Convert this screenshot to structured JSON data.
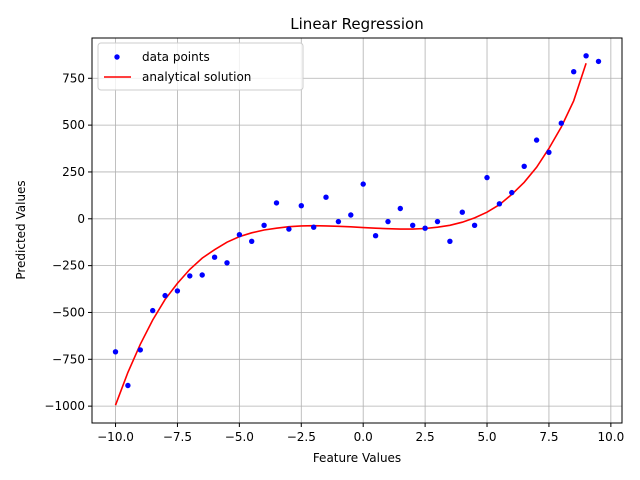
{
  "chart_data": {
    "type": "scatter",
    "title": "Linear Regression",
    "xlabel": "Feature Values",
    "ylabel": "Predicted Values",
    "xlim": [
      -10.95,
      10.45
    ],
    "ylim": [
      -1090,
      965
    ],
    "xticks": [
      -10.0,
      -7.5,
      -5.0,
      -2.5,
      0.0,
      2.5,
      5.0,
      7.5,
      10.0
    ],
    "xtick_labels": [
      "−10.0",
      "−7.5",
      "−5.0",
      "−2.5",
      "0.0",
      "2.5",
      "5.0",
      "7.5",
      "10.0"
    ],
    "yticks": [
      -1000,
      -750,
      -500,
      -250,
      0,
      250,
      500,
      750
    ],
    "ytick_labels": [
      "−1000",
      "−750",
      "−500",
      "−250",
      "0",
      "250",
      "500",
      "750"
    ],
    "grid": true,
    "legend_position": "top-left",
    "series": [
      {
        "name": "data points",
        "kind": "scatter",
        "color": "#0000ff",
        "x": [
          -10.0,
          -9.5,
          -9.0,
          -8.5,
          -8.0,
          -7.5,
          -7.0,
          -6.5,
          -6.0,
          -5.5,
          -5.0,
          -4.5,
          -4.0,
          -3.5,
          -3.0,
          -2.5,
          -2.0,
          -1.5,
          -1.0,
          -0.5,
          0.0,
          0.5,
          1.0,
          1.5,
          2.0,
          2.5,
          3.0,
          3.5,
          4.0,
          4.5,
          5.0,
          5.5,
          6.0,
          6.5,
          7.0,
          7.5,
          8.0,
          8.5,
          9.0,
          9.5
        ],
        "y": [
          -710,
          -890,
          -700,
          -490,
          -410,
          -385,
          -305,
          -300,
          -205,
          -235,
          -85,
          -120,
          -35,
          85,
          -55,
          70,
          -45,
          115,
          -15,
          20,
          185,
          -90,
          -15,
          55,
          -35,
          -50,
          -15,
          -120,
          35,
          -35,
          220,
          80,
          140,
          280,
          420,
          355,
          510,
          785,
          870,
          840
        ]
      },
      {
        "name": "analytical solution",
        "kind": "line",
        "color": "#ff0000",
        "x": [
          -10.0,
          -9.5,
          -9.0,
          -8.5,
          -8.0,
          -7.5,
          -7.0,
          -6.5,
          -6.0,
          -5.5,
          -5.0,
          -4.5,
          -4.0,
          -3.5,
          -3.0,
          -2.5,
          -2.0,
          -1.5,
          -1.0,
          -0.5,
          0.0,
          0.5,
          1.0,
          1.5,
          2.0,
          2.5,
          3.0,
          3.5,
          4.0,
          4.5,
          5.0,
          5.5,
          6.0,
          6.5,
          7.0,
          7.5,
          8.0,
          8.5,
          9.0
        ],
        "y": [
          -995,
          -820,
          -670,
          -540,
          -430,
          -345,
          -270,
          -210,
          -165,
          -125,
          -95,
          -75,
          -60,
          -50,
          -42,
          -38,
          -37,
          -38,
          -40,
          -43,
          -47,
          -50,
          -53,
          -55,
          -55,
          -52,
          -45,
          -35,
          -18,
          5,
          35,
          75,
          130,
          195,
          275,
          375,
          490,
          630,
          830
        ]
      }
    ]
  }
}
